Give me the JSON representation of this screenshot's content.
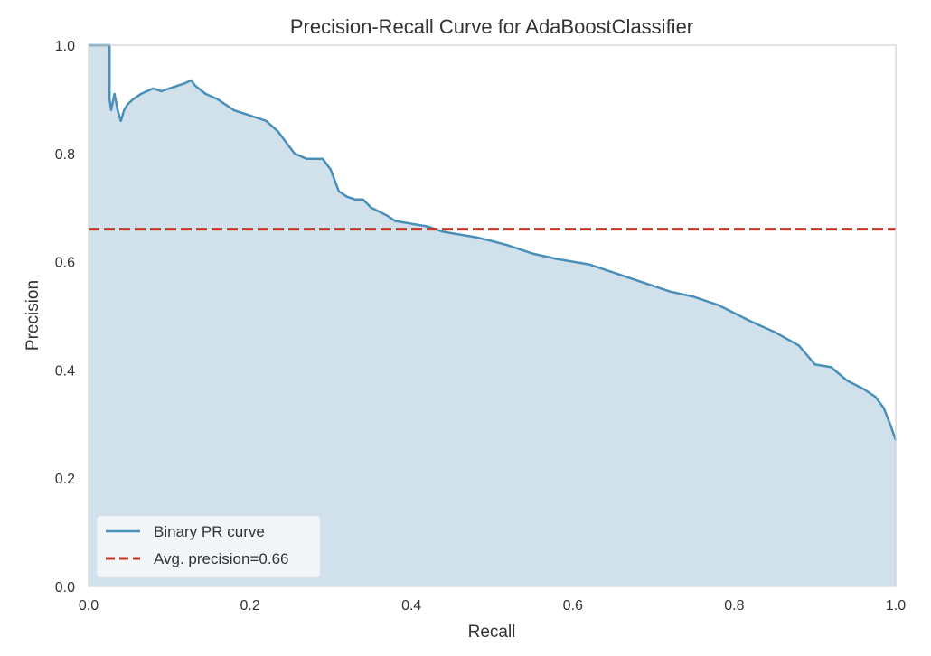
{
  "chart_data": {
    "type": "area",
    "title": "Precision-Recall Curve for AdaBoostClassifier",
    "xlabel": "Recall",
    "ylabel": "Precision",
    "xlim": [
      0.0,
      1.0
    ],
    "ylim": [
      0.0,
      1.0
    ],
    "xticks": [
      0.0,
      0.2,
      0.4,
      0.6,
      0.8,
      1.0
    ],
    "yticks": [
      0.0,
      0.2,
      0.4,
      0.6,
      0.8,
      1.0
    ],
    "xtick_labels": [
      "0.0",
      "0.2",
      "0.4",
      "0.6",
      "0.8",
      "1.0"
    ],
    "ytick_labels": [
      "0.0",
      "0.2",
      "0.4",
      "0.6",
      "0.8",
      "1.0"
    ],
    "grid": false,
    "legend_position": "lower-left",
    "series": [
      {
        "name": "Binary PR curve",
        "kind": "line",
        "color": "#4a8fb8",
        "fill_color": "#d1e1eb",
        "x": [
          0.0,
          0.026,
          0.026,
          0.026,
          0.028,
          0.032,
          0.036,
          0.04,
          0.044,
          0.048,
          0.055,
          0.065,
          0.08,
          0.09,
          0.1,
          0.12,
          0.127,
          0.132,
          0.145,
          0.16,
          0.18,
          0.2,
          0.22,
          0.235,
          0.245,
          0.255,
          0.27,
          0.29,
          0.3,
          0.31,
          0.32,
          0.33,
          0.34,
          0.35,
          0.37,
          0.38,
          0.4,
          0.42,
          0.44,
          0.46,
          0.48,
          0.5,
          0.52,
          0.55,
          0.58,
          0.6,
          0.62,
          0.65,
          0.68,
          0.7,
          0.72,
          0.75,
          0.78,
          0.8,
          0.82,
          0.85,
          0.88,
          0.9,
          0.92,
          0.94,
          0.96,
          0.975,
          0.985,
          0.993,
          1.0
        ],
        "y": [
          1.0,
          1.0,
          0.98,
          0.9,
          0.88,
          0.91,
          0.88,
          0.86,
          0.88,
          0.89,
          0.9,
          0.91,
          0.92,
          0.915,
          0.92,
          0.93,
          0.935,
          0.925,
          0.91,
          0.9,
          0.88,
          0.87,
          0.86,
          0.84,
          0.82,
          0.8,
          0.79,
          0.79,
          0.77,
          0.73,
          0.72,
          0.715,
          0.715,
          0.7,
          0.685,
          0.675,
          0.67,
          0.665,
          0.655,
          0.65,
          0.645,
          0.638,
          0.63,
          0.615,
          0.605,
          0.6,
          0.595,
          0.58,
          0.565,
          0.555,
          0.545,
          0.535,
          0.52,
          0.505,
          0.49,
          0.47,
          0.445,
          0.41,
          0.405,
          0.38,
          0.365,
          0.35,
          0.33,
          0.3,
          0.27
        ]
      },
      {
        "name": "Avg. precision=0.66",
        "kind": "hline",
        "color": "#c0392b",
        "y": 0.66
      }
    ]
  }
}
